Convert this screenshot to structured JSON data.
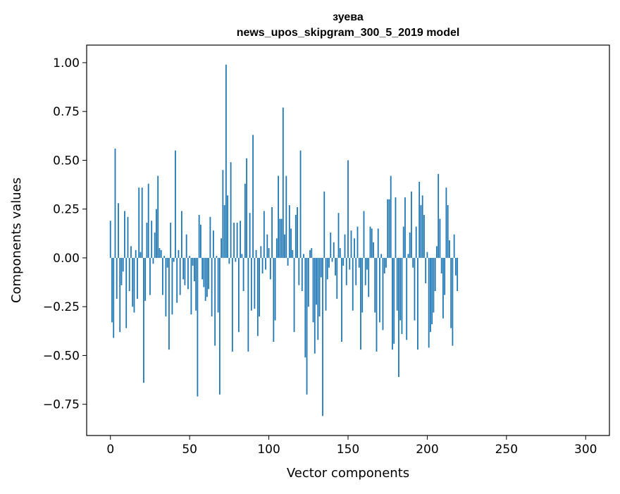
{
  "chart_data": {
    "type": "bar",
    "title_line1": "зуева",
    "title_line2": "news_upos_skipgram_300_5_2019 model",
    "xlabel": "Vector components",
    "ylabel": "Components values",
    "xlim": [
      -15,
      315
    ],
    "ylim": [
      -0.91,
      1.09
    ],
    "xticks": [
      0,
      50,
      100,
      150,
      200,
      250,
      300
    ],
    "xtick_labels": [
      "0",
      "50",
      "100",
      "150",
      "200",
      "250",
      "300"
    ],
    "yticks": [
      1.0,
      0.75,
      0.5,
      0.25,
      0.0,
      -0.25,
      -0.5,
      -0.75
    ],
    "ytick_labels": [
      "1.00",
      "0.75",
      "0.50",
      "0.25",
      "0.00",
      "−0.25",
      "−0.50",
      "−0.75"
    ],
    "bar_color": "#1f77b4",
    "grid": false,
    "values": [
      0.19,
      -0.33,
      -0.41,
      0.56,
      -0.21,
      0.28,
      -0.38,
      -0.14,
      -0.07,
      0.24,
      -0.36,
      0.21,
      -0.17,
      0.06,
      -0.25,
      -0.28,
      0.04,
      -0.21,
      0.36,
      0.03,
      0.36,
      -0.64,
      -0.22,
      0.18,
      0.38,
      -0.19,
      0.19,
      -0.03,
      0.13,
      0.25,
      0.42,
      0.05,
      0.04,
      -0.19,
      0.01,
      -0.3,
      -0.05,
      -0.47,
      0.18,
      -0.29,
      -0.02,
      0.55,
      -0.23,
      0.04,
      -0.19,
      0.24,
      -0.11,
      -0.14,
      0.12,
      -0.16,
      0.01,
      -0.29,
      -0.04,
      -0.12,
      -0.27,
      -0.71,
      0.22,
      0.17,
      -0.11,
      -0.15,
      -0.22,
      -0.2,
      -0.16,
      0.21,
      -0.3,
      0.14,
      -0.45,
      0.01,
      -0.28,
      -0.7,
      0.1,
      0.45,
      0.27,
      0.99,
      0.32,
      -0.03,
      0.49,
      -0.48,
      0.18,
      -0.02,
      0.18,
      -0.38,
      0.19,
      0.02,
      -0.17,
      0.38,
      0.51,
      -0.48,
      0.23,
      -0.27,
      0.63,
      -0.26,
      0.04,
      -0.4,
      -0.3,
      0.06,
      -0.08,
      0.24,
      -0.06,
      0.12,
      0.05,
      -0.11,
      0.26,
      -0.43,
      -0.32,
      0.1,
      0.42,
      0.2,
      0.2,
      0.77,
      0.12,
      0.42,
      -0.04,
      0.27,
      0.15,
      0.04,
      -0.38,
      0.22,
      0.26,
      -0.14,
      0.55,
      -0.17,
      0.02,
      -0.51,
      -0.7,
      -0.25,
      0.04,
      0.05,
      -0.33,
      -0.49,
      -0.24,
      -0.42,
      -0.3,
      -0.1,
      -0.81,
      0.34,
      -0.27,
      -0.11,
      -0.05,
      0.13,
      -0.02,
      0.08,
      -0.09,
      -0.21,
      0.23,
      0.05,
      -0.43,
      -0.04,
      0.12,
      -0.14,
      0.5,
      -0.06,
      0.14,
      -0.27,
      0.1,
      -0.14,
      0.16,
      -0.05,
      -0.47,
      -0.28,
      0.24,
      -0.14,
      -0.06,
      -0.2,
      0.16,
      0.15,
      0.08,
      -0.28,
      -0.48,
      0.15,
      -0.33,
      0.02,
      -0.37,
      -0.08,
      -0.05,
      0.3,
      0.3,
      0.42,
      -0.47,
      -0.44,
      0.31,
      -0.27,
      -0.61,
      -0.32,
      -0.39,
      0.16,
      0.31,
      -0.42,
      0.02,
      0.13,
      0.34,
      -0.05,
      -0.32,
      0.16,
      -0.47,
      0.39,
      0.27,
      0.32,
      0.22,
      -0.13,
      0.03,
      -0.46,
      -0.38,
      -0.34,
      -0.28,
      -0.17,
      0.06,
      0.43,
      0.2,
      -0.08,
      -0.31,
      -0.19,
      0.36,
      0.27,
      0.09,
      -0.36,
      -0.45,
      0.12,
      -0.09,
      -0.17
    ]
  }
}
